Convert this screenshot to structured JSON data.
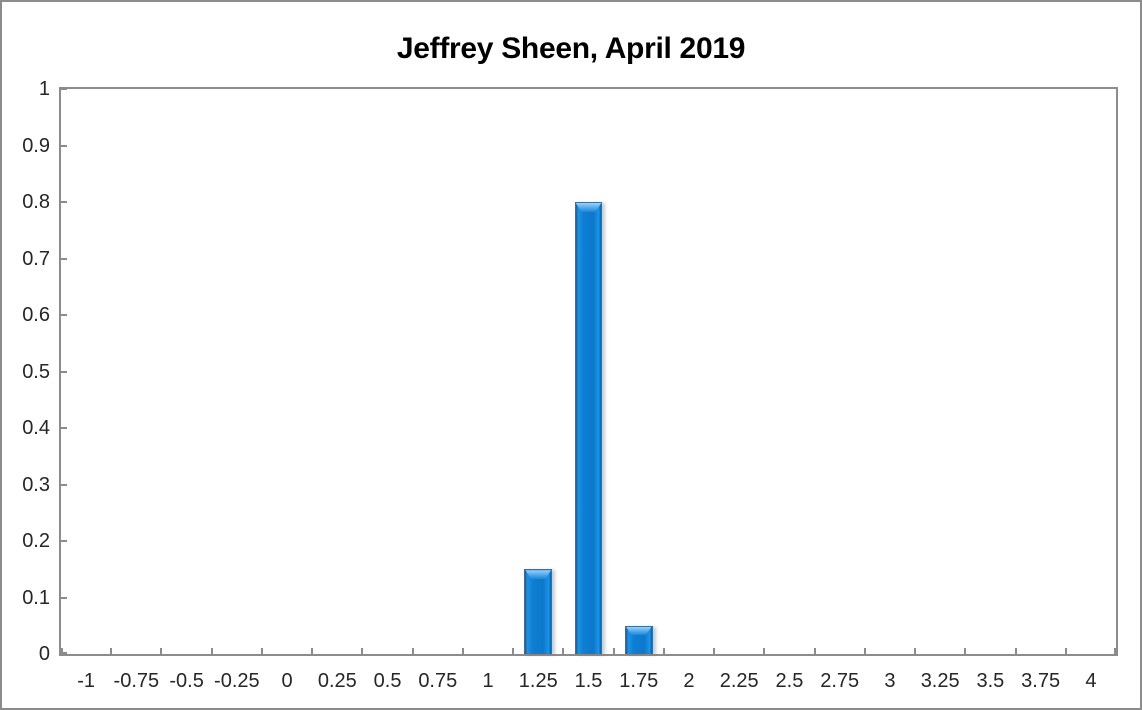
{
  "title": "Jeffrey Sheen, April 2019",
  "colors": {
    "bar_fill_main": "#0C78CB",
    "bar_fill_highlight": "#1B94E8",
    "bar_fill_edge": "#0A5FA6",
    "bar_cap_highlight": "#9AD2F9",
    "bar_outline": "#3D6E99",
    "axis_line": "#8C8C8C",
    "chart_border": "#8C8C8C",
    "label_text": "#262626",
    "title_text": "#000000",
    "background": "#FFFFFF"
  },
  "chart_data": {
    "type": "bar",
    "title": "Jeffrey Sheen, April 2019",
    "categories": [
      -1,
      -0.75,
      -0.5,
      -0.25,
      0,
      0.25,
      0.5,
      0.75,
      1,
      1.25,
      1.5,
      1.75,
      2,
      2.25,
      2.5,
      2.75,
      3,
      3.25,
      3.5,
      3.75,
      4
    ],
    "category_labels": [
      "-1",
      "-0.75",
      "-0.5",
      "-0.25",
      "0",
      "0.25",
      "0.5",
      "0.75",
      "1",
      "1.25",
      "1.5",
      "1.75",
      "2",
      "2.25",
      "2.5",
      "2.75",
      "3",
      "3.25",
      "3.5",
      "3.75",
      "4"
    ],
    "values": [
      0,
      0,
      0,
      0,
      0,
      0,
      0,
      0,
      0,
      0.15,
      0.8,
      0.05,
      0,
      0,
      0,
      0,
      0,
      0,
      0,
      0,
      0
    ],
    "xlabel": "",
    "ylabel": "",
    "ylim": [
      0,
      1
    ],
    "ytick_step": 0.1,
    "ytick_labels": [
      "0",
      "0.1",
      "0.2",
      "0.3",
      "0.4",
      "0.5",
      "0.6",
      "0.7",
      "0.8",
      "0.9",
      "1"
    ],
    "grid": false,
    "legend": null,
    "bar_gap_fraction": 0.225
  }
}
